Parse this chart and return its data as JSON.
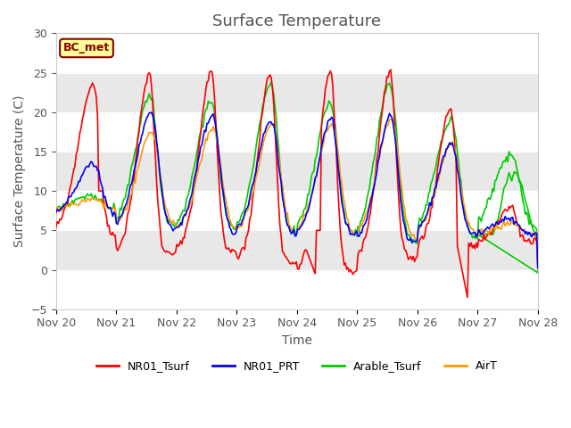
{
  "title": "Surface Temperature",
  "xlabel": "Time",
  "ylabel": "Surface Temperature (C)",
  "ylim": [
    -5,
    30
  ],
  "yticks": [
    -5,
    0,
    5,
    10,
    15,
    20,
    25,
    30
  ],
  "fig_bg_color": "#ffffff",
  "plot_bg_color": "#ffffff",
  "band_color": "#e8e8e8",
  "band_ranges": [
    [
      0,
      5
    ],
    [
      10,
      15
    ],
    [
      20,
      25
    ]
  ],
  "title_color": "#555555",
  "label_color": "#555555",
  "tick_color": "#555555",
  "annotation_text": "BC_met",
  "annotation_bg": "#ffff99",
  "annotation_border": "#8B0000",
  "colors": {
    "NR01_Tsurf": "#ff0000",
    "NR01_PRT": "#0000ff",
    "Arable_Tsurf": "#00cc00",
    "AirT": "#ff9900"
  },
  "title_fontsize": 13,
  "label_fontsize": 10,
  "tick_fontsize": 9,
  "linewidth": 1.2
}
